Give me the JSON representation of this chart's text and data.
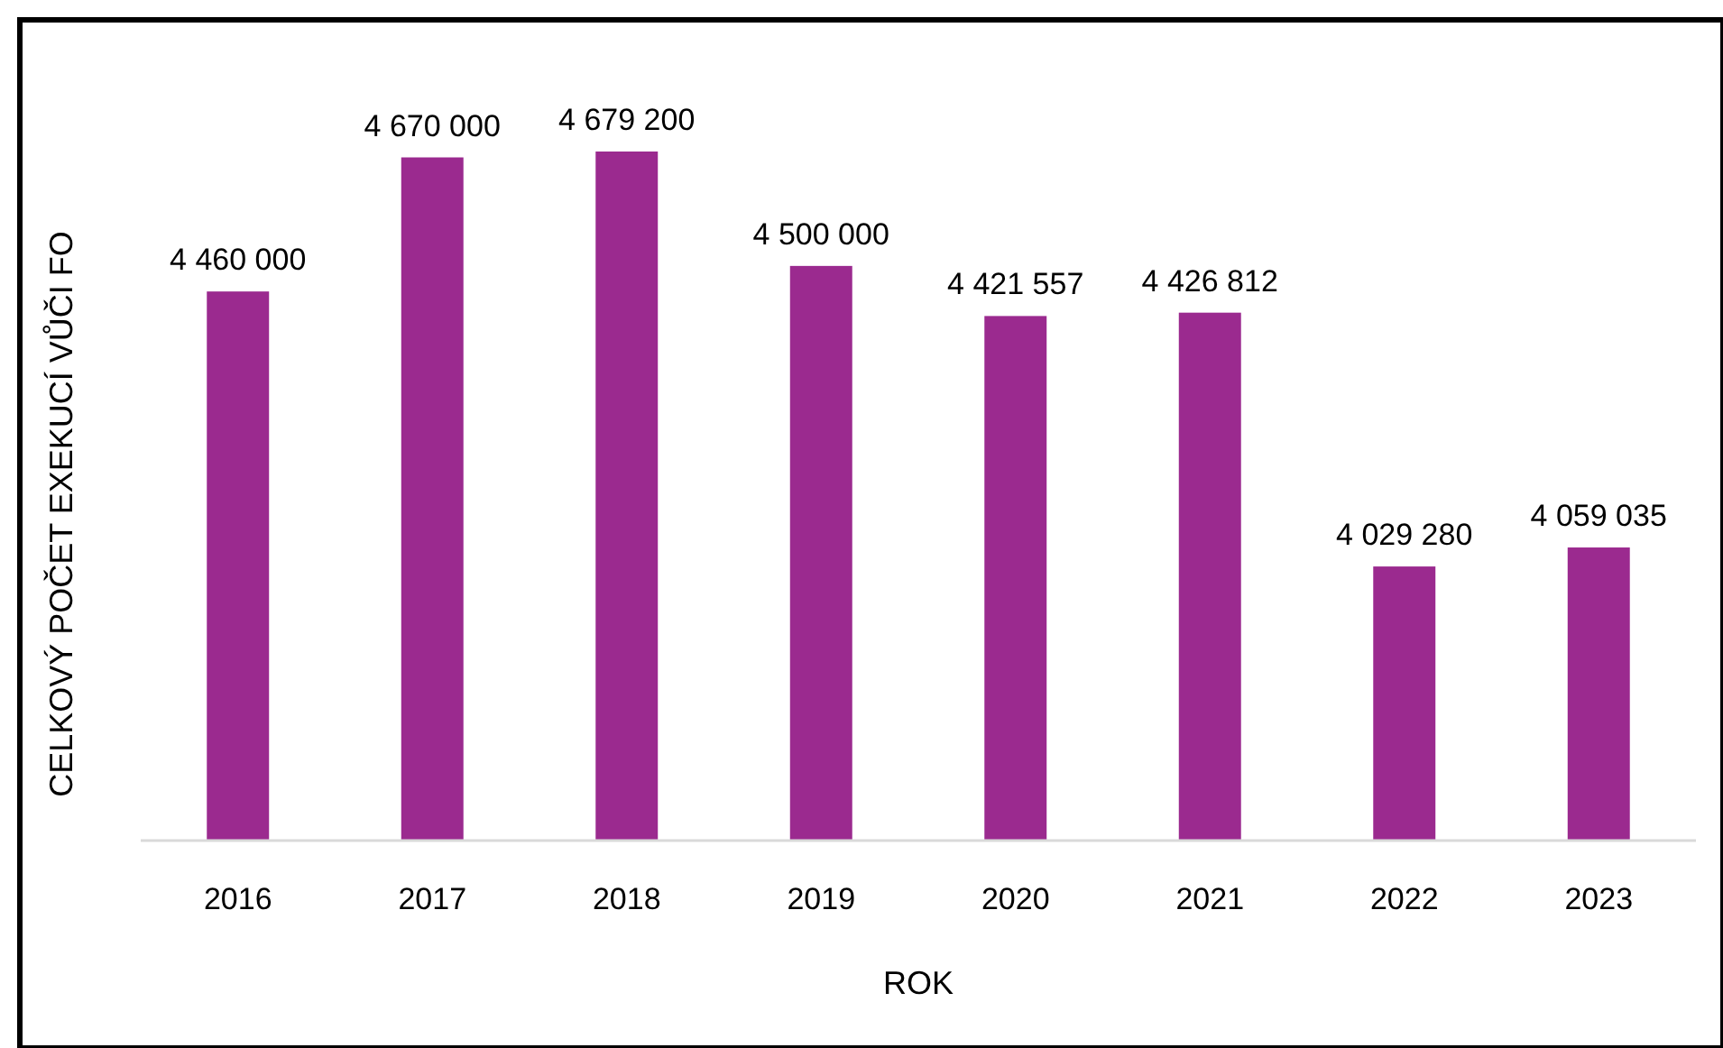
{
  "chart_data": {
    "type": "bar",
    "xlabel": "ROK",
    "ylabel": "CELKOVÝ POČET EXEKUCÍ VŮČI FO",
    "categories": [
      "2016",
      "2017",
      "2018",
      "2019",
      "2020",
      "2021",
      "2022",
      "2023"
    ],
    "values": [
      4460000,
      4670000,
      4679200,
      4500000,
      4421557,
      4426812,
      4029280,
      4059035
    ],
    "value_labels": [
      "4 460 000",
      "4 670 000",
      "4 679 200",
      "4 500 000",
      "4 421 557",
      "4 426 812",
      "4 029 280",
      "4 059 035"
    ],
    "color": "#9b2a8f",
    "ylim": [
      3600000,
      4679200
    ],
    "tick_labels": "x"
  }
}
